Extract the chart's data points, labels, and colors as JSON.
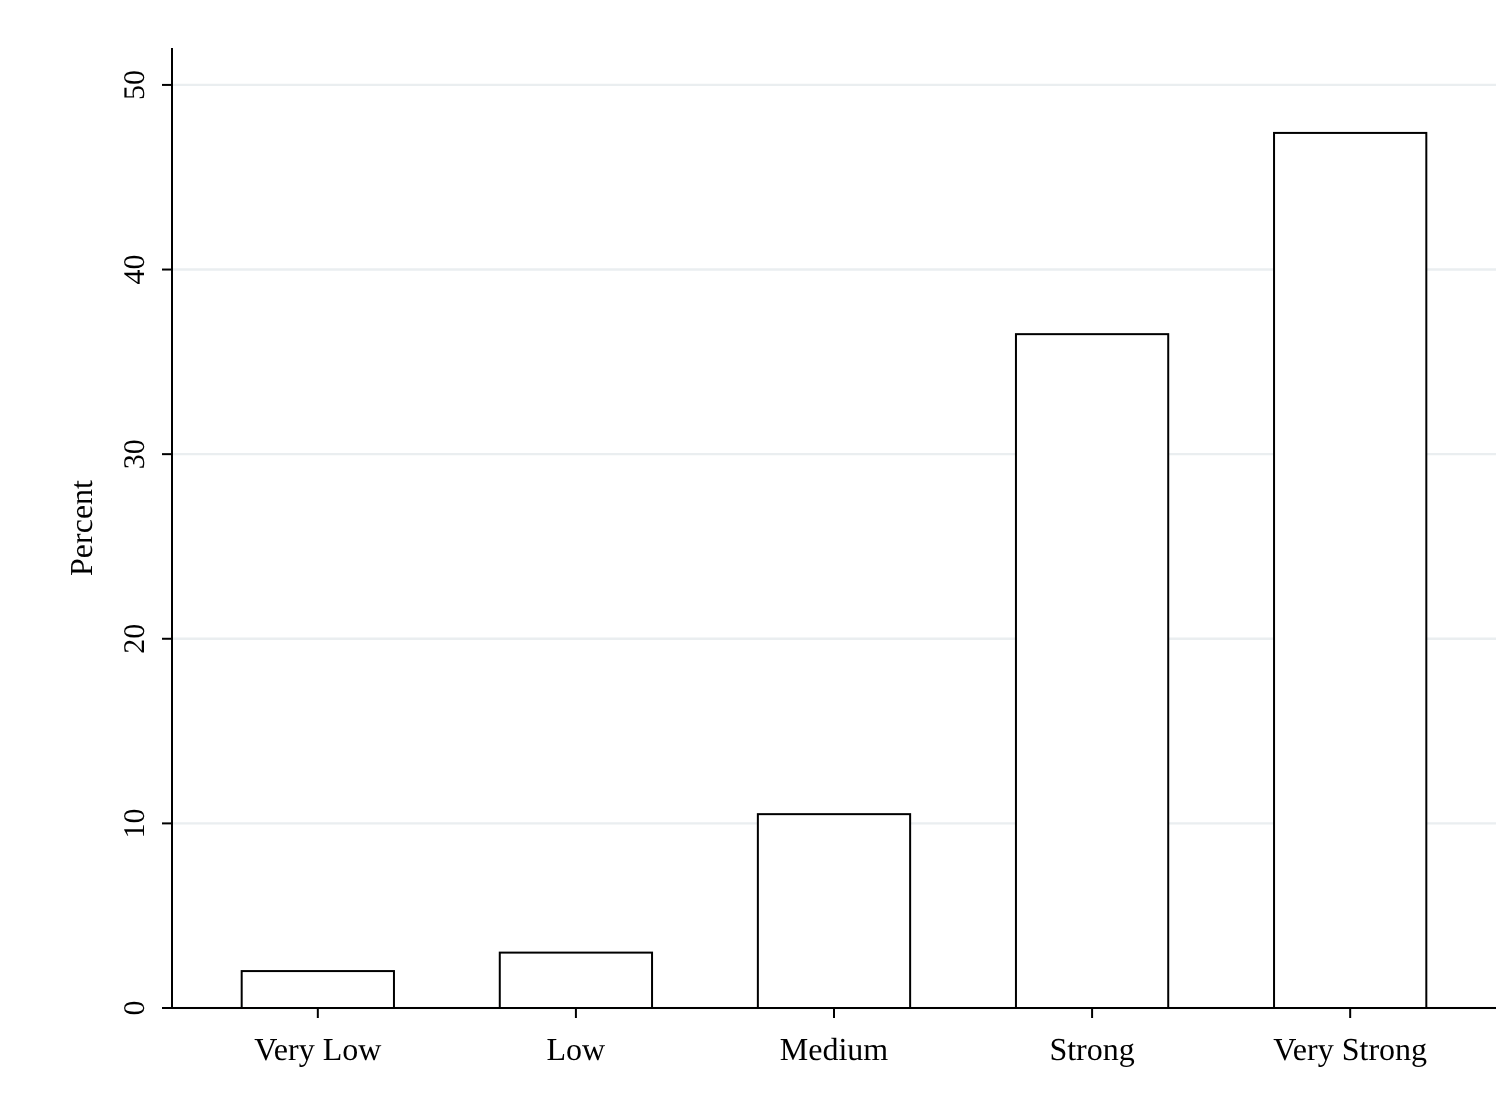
{
  "chart_data": {
    "type": "bar",
    "ylabel": "Percent",
    "categories": [
      "Very Low",
      "Low",
      "Medium",
      "Strong",
      "Very Strong"
    ],
    "values": [
      2.0,
      3.0,
      10.5,
      36.5,
      47.4
    ],
    "color": "#ffffff",
    "ylim": [
      0,
      52
    ],
    "yticks": [
      0,
      10,
      20,
      30,
      40,
      50
    ],
    "grid": "y"
  }
}
